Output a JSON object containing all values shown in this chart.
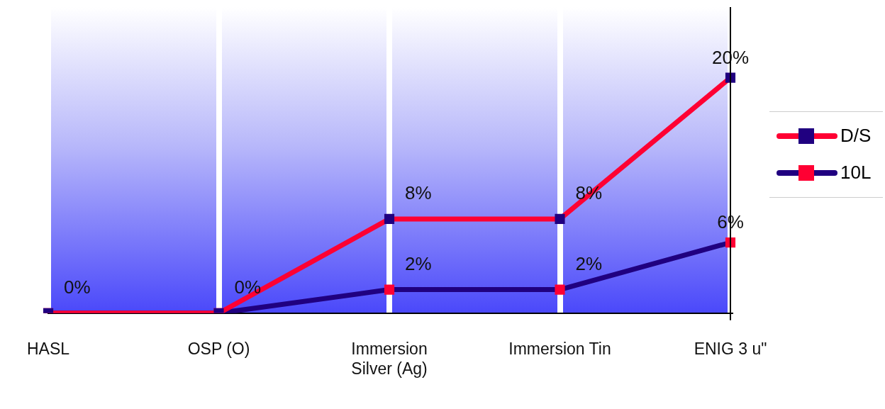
{
  "chart_data": {
    "type": "line",
    "categories": [
      "HASL",
      "OSP (O)",
      "Immersion Silver (Ag)",
      "Immersion Tin",
      "ENIG 3 u\""
    ],
    "series": [
      {
        "name": "D/S",
        "color": "#ff0033",
        "colors": [
          "#200080",
          "#200080",
          "#200080",
          "#200080",
          "#200080"
        ],
        "values": [
          0,
          0,
          8,
          8,
          20
        ],
        "value_labels": [
          "0%",
          "0%",
          "8%",
          "8%",
          "20%"
        ]
      },
      {
        "name": "10L",
        "color": "#200080",
        "colors": [
          "#ff0033",
          "#ff0033",
          "#ff0033",
          "#ff0033",
          "#ff0033"
        ],
        "values": [
          0,
          0,
          2,
          2,
          6
        ],
        "value_labels": [
          null,
          null,
          "2%",
          "2%",
          "6%"
        ]
      }
    ],
    "ylim": [
      0,
      26
    ],
    "tick_labels": "x",
    "grid": "x",
    "legend": "right",
    "marker": "square",
    "line_style": "solid"
  }
}
